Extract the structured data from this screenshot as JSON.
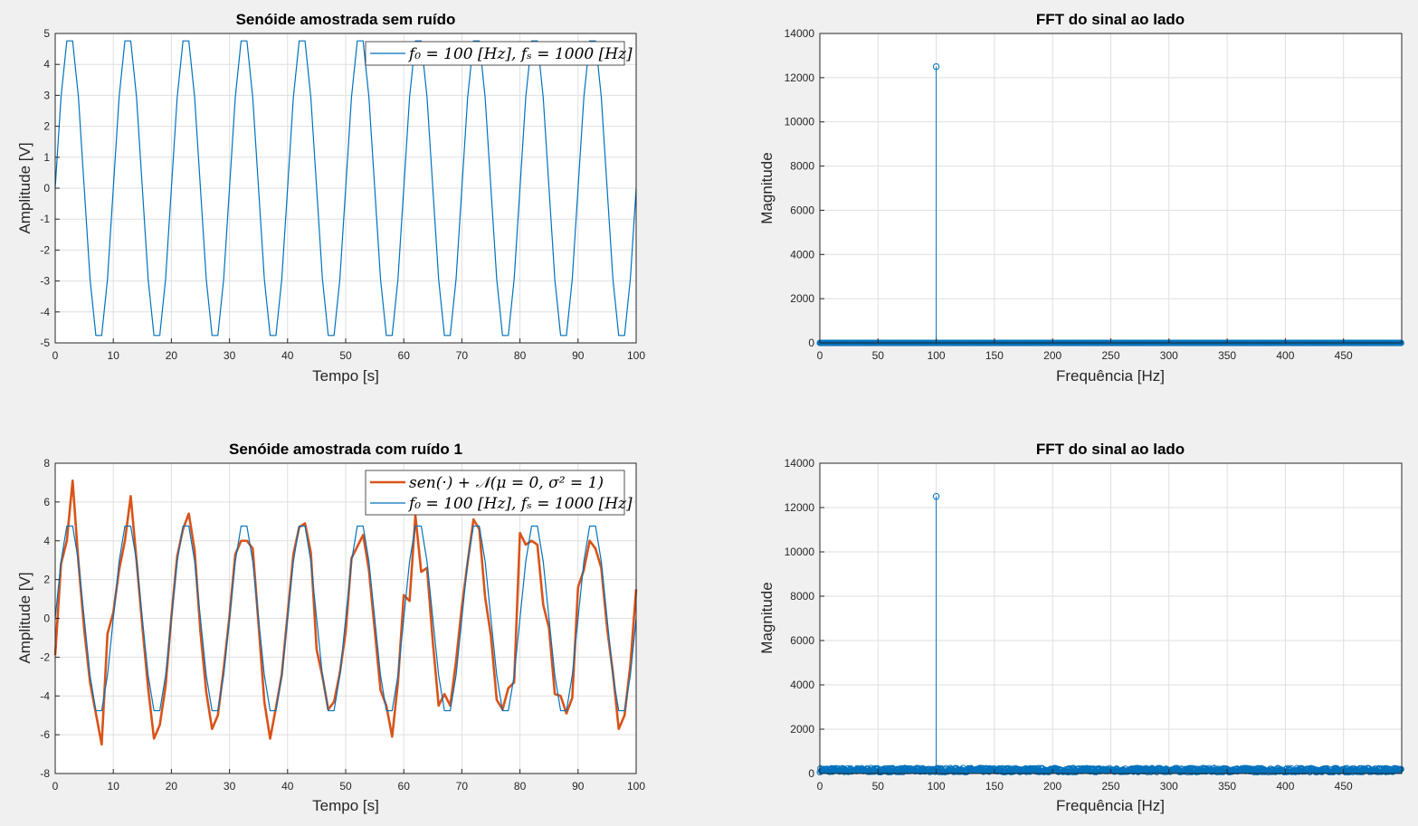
{
  "chart_data": [
    {
      "type": "line",
      "title": "Senóide amostrada sem ruído",
      "xlabel": "Tempo [s]",
      "ylabel": "Amplitude [V]",
      "xlim": [
        0,
        100
      ],
      "ylim": [
        -5,
        5
      ],
      "xticks": [
        0,
        10,
        20,
        30,
        40,
        50,
        60,
        70,
        80,
        90,
        100
      ],
      "yticks": [
        -5,
        -4,
        -3,
        -2,
        -1,
        0,
        1,
        2,
        3,
        4,
        5
      ],
      "grid": true,
      "legend": "top-right",
      "series": [
        {
          "name": "f₀ = 100 [Hz],  fₛ = 1000 [Hz]",
          "color": "#0072bd",
          "x": [
            0,
            1,
            2,
            3,
            4,
            5,
            6,
            7,
            8,
            9,
            10,
            11,
            12,
            13,
            14,
            15,
            16,
            17,
            18,
            19,
            20,
            21,
            22,
            23,
            24,
            25,
            26,
            27,
            28,
            29,
            30,
            31,
            32,
            33,
            34,
            35,
            36,
            37,
            38,
            39,
            40,
            41,
            42,
            43,
            44,
            45,
            46,
            47,
            48,
            49,
            50,
            51,
            52,
            53,
            54,
            55,
            56,
            57,
            58,
            59,
            60,
            61,
            62,
            63,
            64,
            65,
            66,
            67,
            68,
            69,
            70,
            71,
            72,
            73,
            74,
            75,
            76,
            77,
            78,
            79,
            80,
            81,
            82,
            83,
            84,
            85,
            86,
            87,
            88,
            89,
            90,
            91,
            92,
            93,
            94,
            95,
            96,
            97,
            98,
            99,
            100
          ],
          "y": [
            0,
            2.94,
            4.76,
            4.76,
            2.94,
            0,
            -2.94,
            -4.76,
            -4.76,
            -2.94,
            0,
            2.94,
            4.76,
            4.76,
            2.94,
            0,
            -2.94,
            -4.76,
            -4.76,
            -2.94,
            0,
            2.94,
            4.76,
            4.76,
            2.94,
            0,
            -2.94,
            -4.76,
            -4.76,
            -2.94,
            0,
            2.94,
            4.76,
            4.76,
            2.94,
            0,
            -2.94,
            -4.76,
            -4.76,
            -2.94,
            0,
            2.94,
            4.76,
            4.76,
            2.94,
            0,
            -2.94,
            -4.76,
            -4.76,
            -2.94,
            0,
            2.94,
            4.76,
            4.76,
            2.94,
            0,
            -2.94,
            -4.76,
            -4.76,
            -2.94,
            0,
            2.94,
            4.76,
            4.76,
            2.94,
            0,
            -2.94,
            -4.76,
            -4.76,
            -2.94,
            0,
            2.94,
            4.76,
            4.76,
            2.94,
            0,
            -2.94,
            -4.76,
            -4.76,
            -2.94,
            0,
            2.94,
            4.76,
            4.76,
            2.94,
            0,
            -2.94,
            -4.76,
            -4.76,
            -2.94,
            0,
            2.94,
            4.76,
            4.76,
            2.94,
            0,
            -2.94,
            -4.76,
            -4.76,
            -2.94,
            0
          ]
        }
      ]
    },
    {
      "type": "stem",
      "title": "FFT do sinal ao lado",
      "xlabel": "Frequência [Hz]",
      "ylabel": "Magnitude",
      "xlim": [
        0,
        500
      ],
      "ylim": [
        0,
        14000
      ],
      "xticks": [
        0,
        50,
        100,
        150,
        200,
        250,
        300,
        350,
        400,
        450
      ],
      "yticks": [
        0,
        2000,
        4000,
        6000,
        8000,
        10000,
        12000,
        14000
      ],
      "grid": true,
      "series": [
        {
          "color": "#0072bd",
          "peak": {
            "x": 100,
            "y": 12500
          },
          "baseline": {
            "x_range": [
              0,
              500
            ],
            "level": 0
          }
        }
      ]
    },
    {
      "type": "line",
      "title": "Senóide amostrada com ruído 1",
      "xlabel": "Tempo [s]",
      "ylabel": "Amplitude [V]",
      "xlim": [
        0,
        100
      ],
      "ylim": [
        -8,
        8
      ],
      "xticks": [
        0,
        10,
        20,
        30,
        40,
        50,
        60,
        70,
        80,
        90,
        100
      ],
      "yticks": [
        -8,
        -6,
        -4,
        -2,
        0,
        2,
        4,
        6,
        8
      ],
      "grid": true,
      "legend": "top-right",
      "series": [
        {
          "name": "sen(·) + 𝒩(μ = 0, σ² = 1)",
          "color": "#d95319",
          "y": [
            -1.9,
            2.8,
            4.0,
            7.1,
            2.9,
            -0.6,
            -3.3,
            -4.9,
            -6.5,
            -0.8,
            0.3,
            2.5,
            4.0,
            6.3,
            3.0,
            -0.4,
            -3.6,
            -6.2,
            -5.5,
            -3.5,
            0.1,
            3.2,
            4.6,
            5.4,
            3.5,
            -0.7,
            -3.8,
            -5.7,
            -5.0,
            -2.6,
            0.1,
            3.3,
            4.0,
            4.0,
            3.6,
            -0.3,
            -4.3,
            -6.2,
            -4.6,
            -2.9,
            0.2,
            3.3,
            4.7,
            4.9,
            3.4,
            -1.6,
            -3.0,
            -4.7,
            -4.3,
            -2.8,
            -0.7,
            3.1,
            3.7,
            4.3,
            2.5,
            -0.6,
            -3.7,
            -4.5,
            -6.1,
            -3.3,
            1.2,
            0.9,
            5.3,
            2.4,
            2.6,
            -1.2,
            -4.5,
            -3.9,
            -4.5,
            -2.2,
            0.6,
            2.9,
            5.1,
            4.6,
            1.1,
            -0.9,
            -4.2,
            -4.7,
            -3.6,
            -3.3,
            4.4,
            3.8,
            4.0,
            3.8,
            0.7,
            -0.5,
            -3.9,
            -4.0,
            -4.9,
            -4.1,
            1.6,
            2.5,
            4.0,
            3.6,
            2.6,
            -0.5,
            -2.8,
            -5.7,
            -5.0,
            -2.4,
            1.5
          ]
        },
        {
          "name": "f₀ = 100 [Hz],  fₛ = 1000 [Hz]",
          "color": "#0072bd",
          "y": [
            0,
            2.94,
            4.76,
            4.76,
            2.94,
            0,
            -2.94,
            -4.76,
            -4.76,
            -2.94,
            0,
            2.94,
            4.76,
            4.76,
            2.94,
            0,
            -2.94,
            -4.76,
            -4.76,
            -2.94,
            0,
            2.94,
            4.76,
            4.76,
            2.94,
            0,
            -2.94,
            -4.76,
            -4.76,
            -2.94,
            0,
            2.94,
            4.76,
            4.76,
            2.94,
            0,
            -2.94,
            -4.76,
            -4.76,
            -2.94,
            0,
            2.94,
            4.76,
            4.76,
            2.94,
            0,
            -2.94,
            -4.76,
            -4.76,
            -2.94,
            0,
            2.94,
            4.76,
            4.76,
            2.94,
            0,
            -2.94,
            -4.76,
            -4.76,
            -2.94,
            0,
            2.94,
            4.76,
            4.76,
            2.94,
            0,
            -2.94,
            -4.76,
            -4.76,
            -2.94,
            0,
            2.94,
            4.76,
            4.76,
            2.94,
            0,
            -2.94,
            -4.76,
            -4.76,
            -2.94,
            0,
            2.94,
            4.76,
            4.76,
            2.94,
            0,
            -2.94,
            -4.76,
            -4.76,
            -2.94,
            0,
            2.94,
            4.76,
            4.76,
            2.94,
            0,
            -2.94,
            -4.76,
            -4.76,
            -2.94,
            0
          ]
        }
      ]
    },
    {
      "type": "stem",
      "title": "FFT do sinal ao lado",
      "xlabel": "Frequência [Hz]",
      "ylabel": "Magnitude",
      "xlim": [
        0,
        500
      ],
      "ylim": [
        0,
        14000
      ],
      "xticks": [
        0,
        50,
        100,
        150,
        200,
        250,
        300,
        350,
        400,
        450
      ],
      "yticks": [
        0,
        2000,
        4000,
        6000,
        8000,
        10000,
        12000,
        14000
      ],
      "grid": true,
      "series": [
        {
          "color": "#0072bd",
          "peak": {
            "x": 100,
            "y": 12500
          },
          "noise_floor": {
            "x_range": [
              0,
              500
            ],
            "max_level": 250
          }
        }
      ]
    }
  ]
}
